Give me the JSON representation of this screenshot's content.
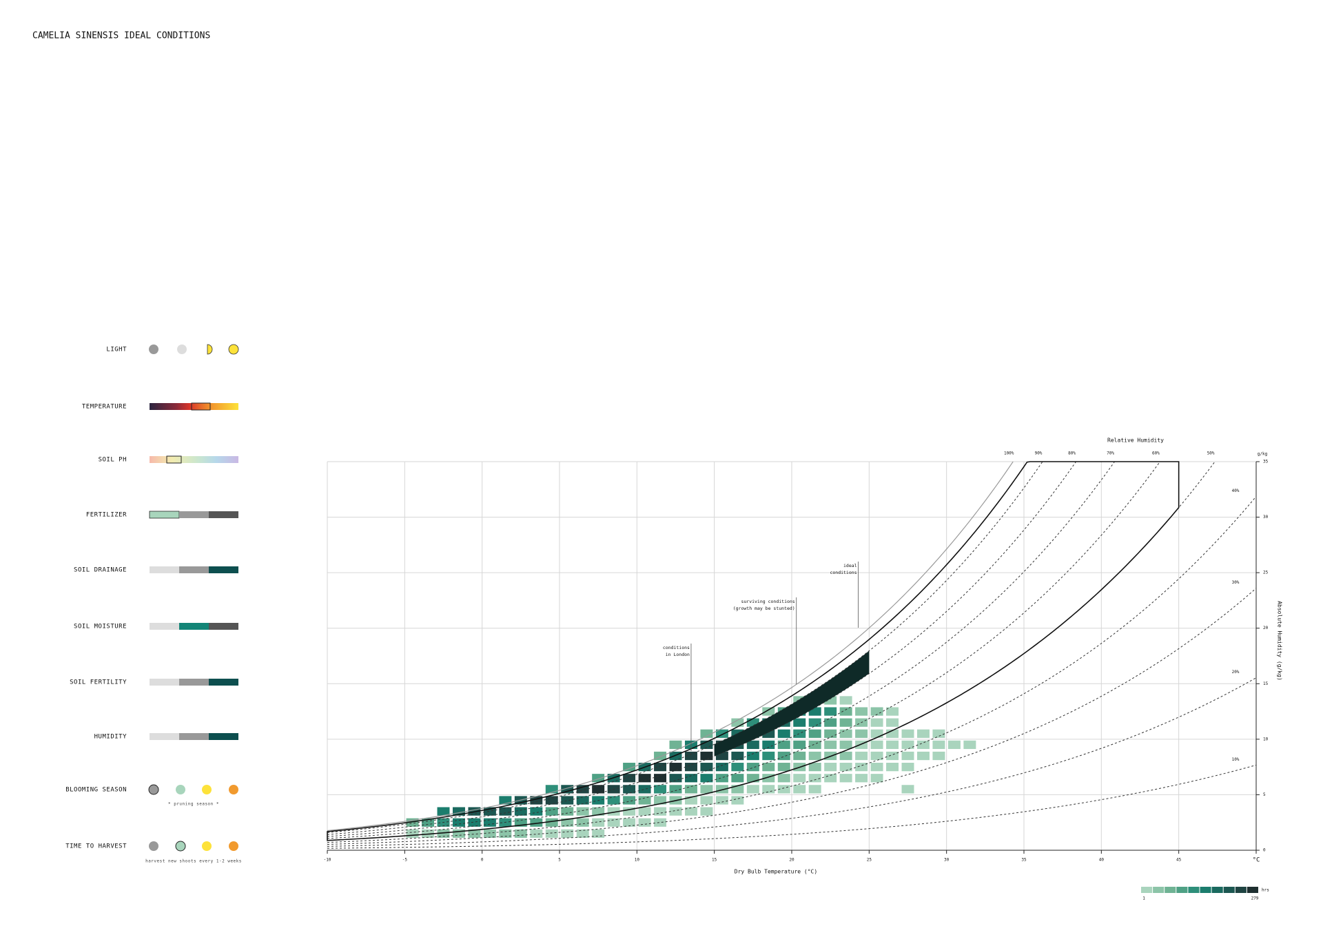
{
  "title": "CAMELIA SINENSIS IDEAL CONDITIONS",
  "legend_rows": [
    "LIGHT",
    "TEMPERATURE",
    "SOIL PH",
    "FERTILIZER",
    "SOIL DRAINAGE",
    "SOIL MOISTURE",
    "SOIL FERTILITY",
    "HUMIDITY",
    "BLOOMING SEASON",
    "TIME TO HARVEST"
  ],
  "notes": {
    "blooming": "* pruning season *",
    "harvest": "harvest new shoots every 1-2 weeks"
  },
  "chart_data": {
    "type": "psychrometric",
    "title": "Relative Humidity",
    "x_label": "Dry Bulb Temperature (°C)",
    "y_label": "Absolute Humidity (g/kg)",
    "y_unit": "g/kg",
    "xlim": [
      -10,
      50
    ],
    "xticks": [
      -10,
      -5,
      0,
      5,
      10,
      15,
      20,
      25,
      30,
      35,
      40,
      45,
      {
        "value": 50,
        "label": "°C"
      }
    ],
    "ylim": [
      0,
      35
    ],
    "yticks": [
      0,
      5,
      10,
      15,
      20,
      25,
      30,
      35
    ],
    "grid": true,
    "rh_curves": [
      {
        "value": 100,
        "label": "100%",
        "dashed": false
      },
      {
        "value": 90,
        "label": "90%",
        "dashed": true
      },
      {
        "value": 80,
        "label": "80%",
        "dashed": true
      },
      {
        "value": 70,
        "label": "70%",
        "dashed": true
      },
      {
        "value": 60,
        "label": "60%",
        "dashed": true
      },
      {
        "value": 50,
        "label": "50%",
        "dashed": true
      },
      {
        "value": 40,
        "label": "40%",
        "dashed": true
      },
      {
        "value": 30,
        "label": "30%",
        "dashed": true
      },
      {
        "value": 20,
        "label": "20%",
        "dashed": true
      },
      {
        "value": 10,
        "label": "10%",
        "dashed": true
      }
    ],
    "surviving_region": {
      "rh": [
        50,
        95
      ],
      "temp": [
        -10,
        45
      ]
    },
    "ideal_region": {
      "rh": [
        80,
        90
      ],
      "temp": [
        15,
        25
      ],
      "color": "#0f2a28"
    },
    "annotations": [
      {
        "lines": [
          "conditions",
          "in London"
        ],
        "x": 13.5
      },
      {
        "lines": [
          "surviving conditions",
          "(growth may be stunted)"
        ],
        "x": 20.3
      },
      {
        "lines": [
          "ideal",
          "conditions"
        ],
        "x": 24.3
      }
    ],
    "heatmap": {
      "unit": "hrs",
      "vmin": 1,
      "vmax": 279,
      "colors": [
        "#a9d4bd",
        "#8cc4a8",
        "#6fb394",
        "#4fa185",
        "#2e8f7a",
        "#1b7d6d",
        "#1a6a5f",
        "#1c5751",
        "#1f4442",
        "#1e2f30"
      ],
      "x": [
        -5,
        -4,
        -3,
        -2,
        -1,
        0,
        1,
        2,
        3,
        4,
        5,
        6,
        7,
        8,
        9,
        10,
        11,
        12,
        13,
        14,
        15,
        16,
        17,
        18,
        19,
        20,
        21,
        22,
        23,
        24,
        25,
        26,
        27,
        28,
        29,
        30,
        31
      ],
      "y": [
        1,
        2,
        3,
        4,
        5,
        6,
        7,
        8,
        9,
        10,
        11,
        12,
        13
      ],
      "values": [
        [
          20,
          25,
          30,
          40,
          45,
          40,
          35,
          30,
          25,
          20,
          15,
          10,
          8,
          null,
          null,
          null,
          null,
          null,
          null,
          null,
          null,
          null,
          null,
          null,
          null,
          null,
          null,
          null,
          null,
          null,
          null,
          null,
          null,
          null,
          null,
          null,
          null
        ],
        [
          60,
          90,
          120,
          150,
          160,
          150,
          130,
          110,
          90,
          70,
          50,
          35,
          25,
          18,
          12,
          8,
          5,
          null,
          null,
          null,
          null,
          null,
          null,
          null,
          null,
          null,
          null,
          null,
          null,
          null,
          null,
          null,
          null,
          null,
          null,
          null,
          null
        ],
        [
          null,
          null,
          140,
          180,
          210,
          220,
          200,
          170,
          140,
          110,
          80,
          55,
          40,
          28,
          20,
          14,
          10,
          6,
          4,
          3,
          null,
          null,
          null,
          null,
          null,
          null,
          null,
          null,
          null,
          null,
          null,
          null,
          null,
          null,
          null,
          null,
          null
        ],
        [
          null,
          null,
          null,
          null,
          null,
          null,
          150,
          200,
          230,
          240,
          220,
          190,
          160,
          120,
          90,
          65,
          45,
          30,
          20,
          14,
          10,
          6,
          null,
          null,
          null,
          null,
          null,
          null,
          null,
          null,
          null,
          null,
          null,
          null,
          null,
          null,
          null
        ],
        [
          null,
          null,
          null,
          null,
          null,
          null,
          null,
          null,
          null,
          120,
          200,
          250,
          270,
          250,
          210,
          170,
          130,
          100,
          75,
          55,
          40,
          30,
          22,
          16,
          12,
          8,
          6,
          null,
          null,
          null,
          null,
          null,
          4,
          null,
          null,
          null,
          null
        ],
        [
          null,
          null,
          null,
          null,
          null,
          null,
          null,
          null,
          null,
          null,
          null,
          null,
          100,
          190,
          250,
          279,
          260,
          220,
          180,
          140,
          110,
          85,
          65,
          50,
          38,
          28,
          20,
          15,
          11,
          8,
          6,
          null,
          null,
          null,
          null,
          null,
          null
        ],
        [
          null,
          null,
          null,
          null,
          null,
          null,
          null,
          null,
          null,
          null,
          null,
          null,
          null,
          null,
          90,
          180,
          240,
          270,
          250,
          210,
          170,
          135,
          105,
          80,
          62,
          48,
          36,
          26,
          19,
          14,
          10,
          7,
          5,
          null,
          null,
          null,
          null
        ],
        [
          null,
          null,
          null,
          null,
          null,
          null,
          null,
          null,
          null,
          null,
          null,
          null,
          null,
          null,
          null,
          null,
          80,
          170,
          230,
          260,
          240,
          200,
          160,
          125,
          95,
          72,
          55,
          42,
          32,
          24,
          17,
          12,
          9,
          6,
          5,
          null,
          null
        ],
        [
          null,
          null,
          null,
          null,
          null,
          null,
          null,
          null,
          null,
          null,
          null,
          null,
          null,
          null,
          null,
          null,
          null,
          70,
          150,
          210,
          240,
          220,
          180,
          145,
          110,
          85,
          65,
          50,
          38,
          28,
          20,
          14,
          10,
          7,
          5,
          4,
          3
        ],
        [
          null,
          null,
          null,
          null,
          null,
          null,
          null,
          null,
          null,
          null,
          null,
          null,
          null,
          null,
          null,
          null,
          null,
          null,
          null,
          60,
          130,
          190,
          220,
          200,
          160,
          120,
          90,
          65,
          48,
          35,
          26,
          18,
          12,
          8,
          5,
          null,
          null
        ],
        [
          null,
          null,
          null,
          null,
          null,
          null,
          null,
          null,
          null,
          null,
          null,
          null,
          null,
          null,
          null,
          null,
          null,
          null,
          null,
          null,
          null,
          50,
          120,
          170,
          190,
          160,
          120,
          85,
          60,
          40,
          26,
          16,
          null,
          null,
          null,
          null,
          null
        ],
        [
          null,
          null,
          null,
          null,
          null,
          null,
          null,
          null,
          null,
          null,
          null,
          null,
          null,
          null,
          null,
          null,
          null,
          null,
          null,
          null,
          null,
          null,
          null,
          40,
          100,
          140,
          150,
          120,
          80,
          50,
          30,
          18,
          null,
          null,
          null,
          null,
          null
        ],
        [
          null,
          null,
          null,
          null,
          null,
          null,
          null,
          null,
          null,
          null,
          null,
          null,
          null,
          null,
          null,
          null,
          null,
          null,
          null,
          null,
          null,
          null,
          null,
          null,
          null,
          30,
          60,
          40,
          20,
          null,
          null,
          null,
          null,
          null,
          null,
          null,
          null
        ]
      ]
    }
  }
}
